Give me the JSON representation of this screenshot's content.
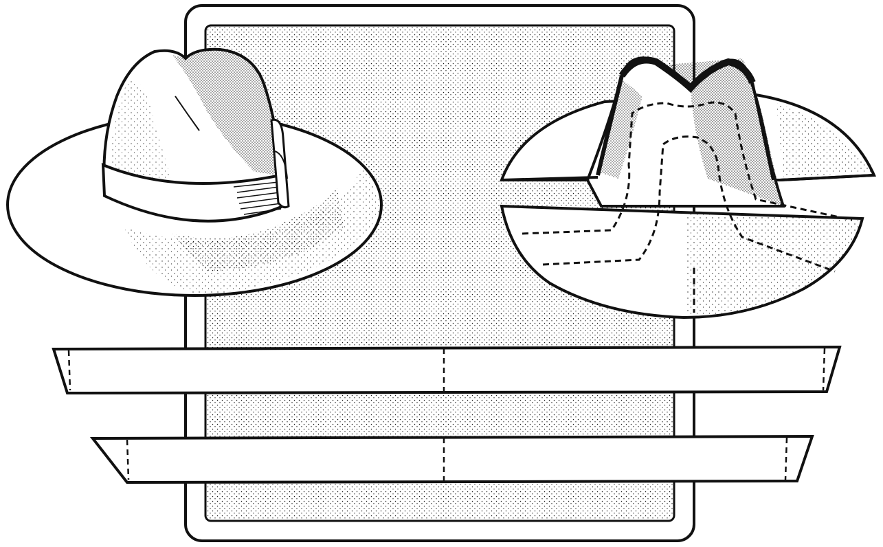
{
  "illustration": {
    "subject": "hat-pattern-drawing",
    "colors": {
      "ink": "#111111",
      "paper": "#ffffff",
      "stipple": "#1a1a1a"
    },
    "parts": [
      "frame",
      "stippled-panel",
      "finished-hat",
      "cutaway-hat",
      "upper-band-strip",
      "lower-band-strip"
    ]
  }
}
